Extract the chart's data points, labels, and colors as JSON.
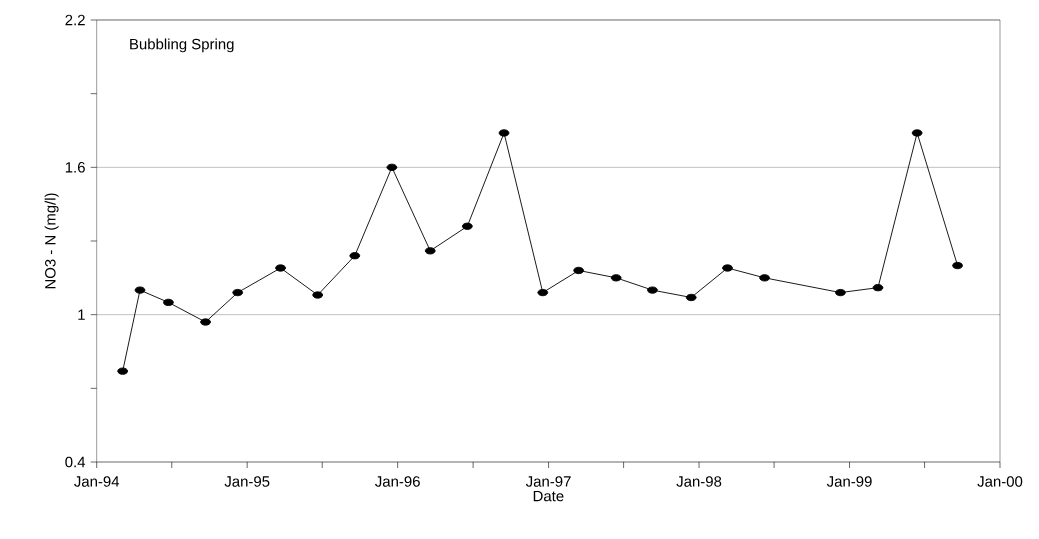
{
  "chart_data": {
    "type": "line",
    "xlabel": "Date",
    "ylabel": "NO3 - N (mg/l)",
    "annotations": [
      "Bubbling Spring"
    ],
    "x": [
      "1994-03-05",
      "1994-04-16",
      "1994-06-24",
      "1994-09-22",
      "1994-12-09",
      "1995-03-23",
      "1995-06-21",
      "1995-09-19",
      "1995-12-18",
      "1996-03-20",
      "1996-06-18",
      "1996-09-15",
      "1996-12-18",
      "1997-03-15",
      "1997-06-14",
      "1997-09-10",
      "1997-12-13",
      "1998-03-11",
      "1998-06-09",
      "1998-12-10",
      "1999-03-11",
      "1999-06-14",
      "1999-09-20"
    ],
    "series": [
      {
        "color": "#000000",
        "values": [
          0.77,
          1.1,
          1.05,
          0.97,
          1.09,
          1.19,
          1.08,
          1.24,
          1.6,
          1.26,
          1.36,
          1.74,
          1.09,
          1.18,
          1.15,
          1.1,
          1.07,
          1.19,
          1.15,
          1.09,
          1.11,
          1.74,
          1.2
        ]
      }
    ],
    "xlim": [
      "1994-01-01",
      "2000-01-01"
    ],
    "xticks": [
      {
        "value": "1994-01-01",
        "label": "Jan-94"
      },
      {
        "value": "1994-07-02",
        "label": null
      },
      {
        "value": "1995-01-01",
        "label": "Jan-95"
      },
      {
        "value": "1995-07-02",
        "label": null
      },
      {
        "value": "1996-01-01",
        "label": "Jan-96"
      },
      {
        "value": "1996-07-02",
        "label": null
      },
      {
        "value": "1997-01-01",
        "label": "Jan-97"
      },
      {
        "value": "1997-07-02",
        "label": null
      },
      {
        "value": "1998-01-01",
        "label": "Jan-98"
      },
      {
        "value": "1998-07-02",
        "label": null
      },
      {
        "value": "1999-01-01",
        "label": "Jan-99"
      },
      {
        "value": "1999-07-02",
        "label": null
      },
      {
        "value": "2000-01-01",
        "label": "Jan-00"
      }
    ],
    "ylim": [
      0.4,
      2.2
    ],
    "yticks": [
      0.4,
      {
        "value": 0.7,
        "label": null
      },
      1,
      {
        "value": 1.3,
        "label": null
      },
      1.6,
      {
        "value": 1.9,
        "label": null
      },
      2.2
    ],
    "grid": "y",
    "marker": "circle",
    "line_style": "solid"
  }
}
